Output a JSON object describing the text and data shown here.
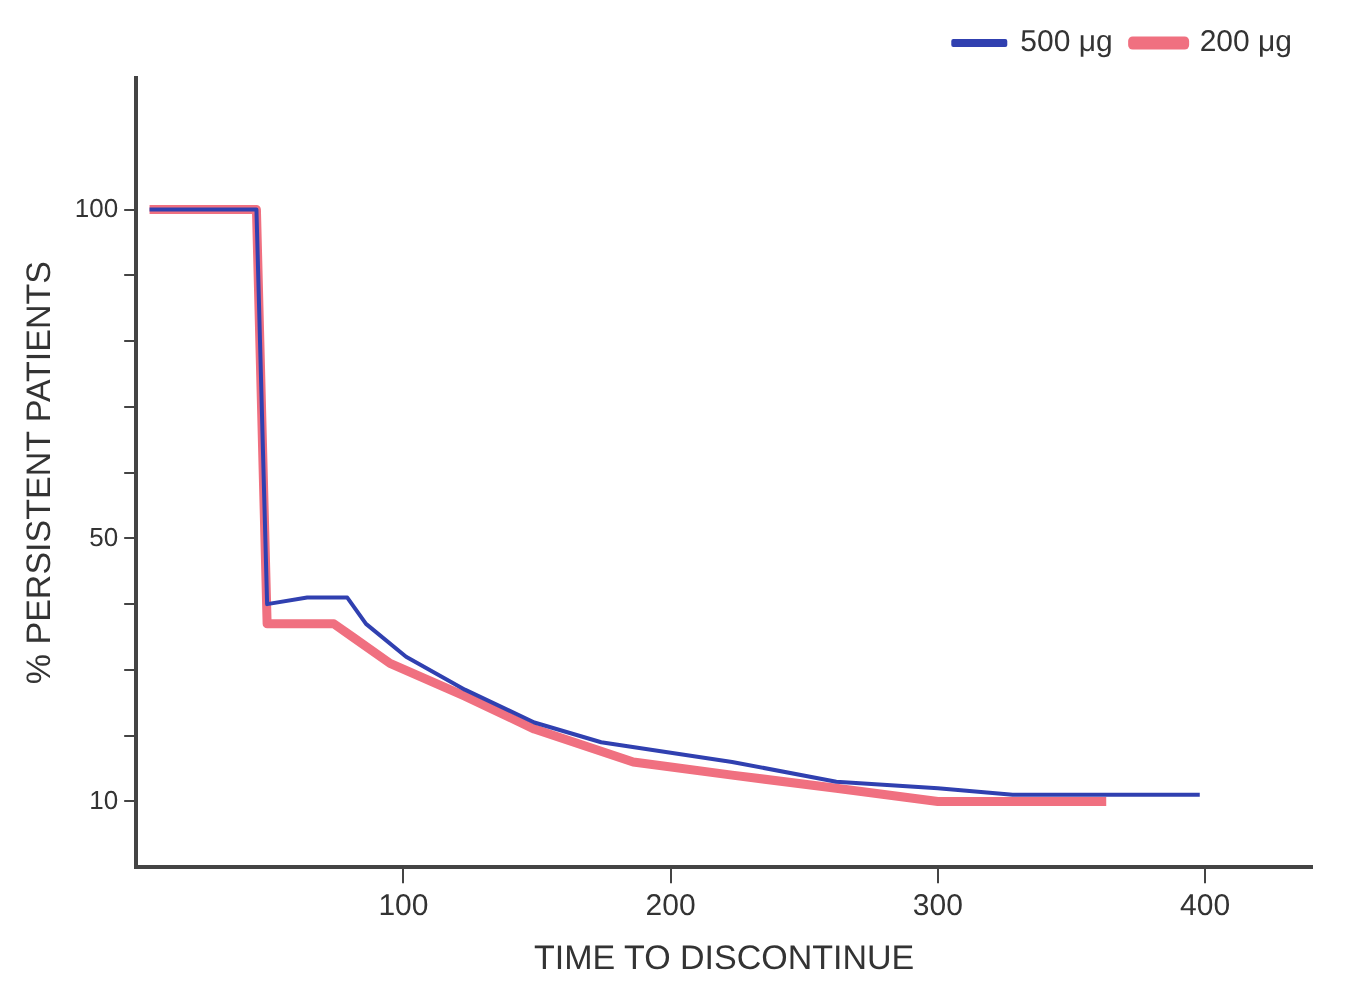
{
  "chart_data": {
    "type": "line",
    "xlabel": "TIME TO DISCONTINUE",
    "ylabel": "% PERSISTENT PATIENTS",
    "xlim": [
      0,
      440
    ],
    "xticks": [
      100,
      200,
      300,
      400
    ],
    "ylim": [
      0,
      120
    ],
    "yticks": [
      10,
      {
        "value": 20,
        "label": null
      },
      {
        "value": 30,
        "label": null
      },
      {
        "value": 40,
        "label": null
      },
      50,
      {
        "value": 60,
        "label": null
      },
      {
        "value": 70,
        "label": null
      },
      {
        "value": 80,
        "label": null
      },
      {
        "value": 90,
        "label": null
      },
      100
    ],
    "grid": false,
    "legend": "top right",
    "marker": "none",
    "line_style": "solid",
    "series": [
      {
        "name": "200 μg",
        "color": "#f07080",
        "x": [
          5,
          45,
          49,
          74,
          81,
          95,
          123,
          149,
          186,
          223,
          262,
          300,
          363
        ],
        "values": [
          100,
          100,
          37,
          37,
          35,
          31,
          26,
          21,
          16,
          14,
          12,
          10,
          10
        ]
      },
      {
        "name": "500 μg",
        "color": "#3040b0",
        "x": [
          5,
          45,
          49,
          64,
          79,
          86,
          101,
          123,
          149,
          174,
          223,
          262,
          300,
          328,
          363,
          398
        ],
        "values": [
          100,
          100,
          40,
          41,
          41,
          37,
          32,
          27,
          22,
          19,
          16,
          13,
          12,
          11,
          11,
          11
        ]
      }
    ]
  }
}
